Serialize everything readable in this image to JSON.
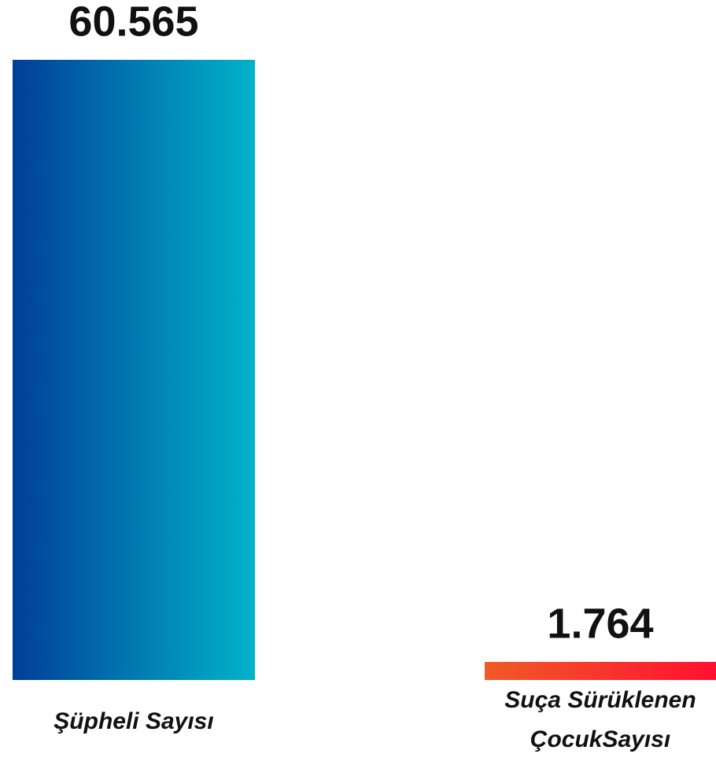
{
  "chart_data": {
    "type": "bar",
    "categories": [
      "Şüpheli Sayısı",
      "Suça Sürüklenen ÇocukSayısı"
    ],
    "values": [
      60565,
      1764
    ],
    "value_labels": [
      "60.565",
      "1.764"
    ],
    "colors": [
      {
        "from": "#003f98",
        "to": "#00b3c9"
      },
      {
        "from": "#f05a28",
        "to": "#ff1030"
      }
    ]
  }
}
